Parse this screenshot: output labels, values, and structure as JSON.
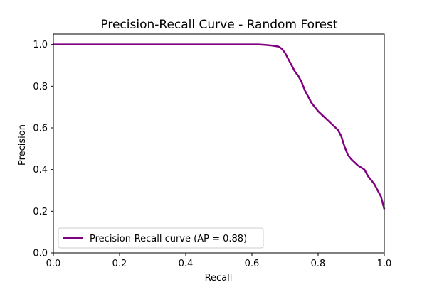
{
  "chart_data": {
    "type": "line",
    "title": "Precision-Recall Curve - Random Forest",
    "xlabel": "Recall",
    "ylabel": "Precision",
    "xlim": [
      0.0,
      1.0
    ],
    "ylim": [
      0.0,
      1.05
    ],
    "grid": false,
    "legend_position": "lower-left",
    "xticks": [
      0.0,
      0.2,
      0.4,
      0.6,
      0.8,
      1.0
    ],
    "xtick_labels": [
      "0.0",
      "0.2",
      "0.4",
      "0.6",
      "0.8",
      "1.0"
    ],
    "yticks": [
      0.0,
      0.2,
      0.4,
      0.6,
      0.8,
      1.0
    ],
    "ytick_labels": [
      "0.0",
      "0.2",
      "0.4",
      "0.6",
      "0.8",
      "1.0"
    ],
    "series": [
      {
        "name": "Precision-Recall curve (AP = 0.88)",
        "color": "#800080",
        "x": [
          0.0,
          0.1,
          0.2,
          0.3,
          0.4,
          0.5,
          0.6,
          0.62,
          0.64,
          0.66,
          0.68,
          0.69,
          0.7,
          0.71,
          0.72,
          0.73,
          0.74,
          0.75,
          0.76,
          0.77,
          0.78,
          0.79,
          0.8,
          0.82,
          0.84,
          0.86,
          0.87,
          0.88,
          0.89,
          0.9,
          0.92,
          0.94,
          0.95,
          0.96,
          0.97,
          0.98,
          0.99,
          1.0
        ],
        "y": [
          1.0,
          1.0,
          1.0,
          1.0,
          1.0,
          1.0,
          1.0,
          1.0,
          0.998,
          0.995,
          0.99,
          0.98,
          0.96,
          0.93,
          0.9,
          0.87,
          0.85,
          0.82,
          0.78,
          0.75,
          0.72,
          0.7,
          0.68,
          0.65,
          0.62,
          0.59,
          0.56,
          0.51,
          0.47,
          0.45,
          0.42,
          0.4,
          0.37,
          0.35,
          0.33,
          0.3,
          0.27,
          0.21
        ]
      }
    ]
  }
}
